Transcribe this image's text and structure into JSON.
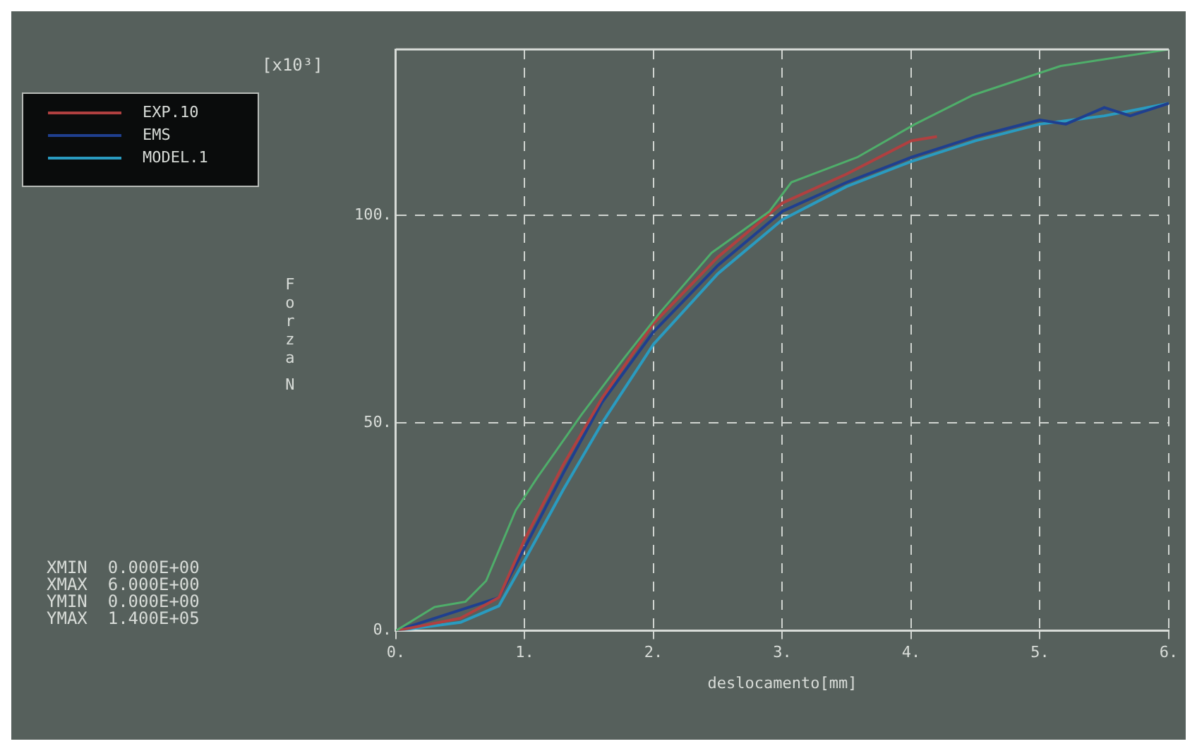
{
  "chart_data": {
    "type": "line",
    "xlabel": "deslocamento[mm]",
    "ylabel": "Forza N",
    "xlim": [
      0,
      6
    ],
    "xticks": [
      {
        "value": 0,
        "label": "0."
      },
      {
        "value": 1,
        "label": "1."
      },
      {
        "value": 2,
        "label": "2."
      },
      {
        "value": 3,
        "label": "3."
      },
      {
        "value": 4,
        "label": "4."
      },
      {
        "value": 5,
        "label": "5."
      },
      {
        "value": 6,
        "label": "6."
      }
    ],
    "ylim": [
      0,
      140
    ],
    "yticks": [
      {
        "value": 0,
        "label": "0."
      },
      {
        "value": 50,
        "label": "50."
      },
      {
        "value": 100,
        "label": "100."
      }
    ],
    "grid": true,
    "legend": "top left",
    "marker": "none",
    "line_style": "solid",
    "annotations": [
      "[x10³]",
      "XMIN  0.000E+00",
      "XMAX  6.000E+00",
      "YMIN  0.000E+00",
      "YMAX  1.400E+05"
    ],
    "series": [
      {
        "color": "#4fae6a",
        "x": [
          0,
          0.3,
          0.54,
          0.7,
          0.93,
          1.1,
          1.44,
          1.78,
          2.06,
          2.45,
          2.9,
          3.07,
          3.58,
          4.03,
          4.48,
          5.16,
          6
        ],
        "values": [
          0,
          5.7,
          7,
          12,
          29,
          37,
          52,
          66,
          77,
          91,
          101,
          108,
          114,
          122,
          129,
          136,
          140
        ]
      },
      {
        "name": "EXP.10",
        "color": "#b04040",
        "x": [
          0,
          0.5,
          0.8,
          1,
          1.3,
          1.6,
          2,
          2.5,
          3,
          3.5,
          4,
          4.2
        ],
        "values": [
          0,
          3,
          8,
          22,
          40,
          56,
          74,
          90,
          103,
          110,
          118,
          119
        ]
      },
      {
        "name": "EMS",
        "color": "#1f3f8f",
        "x": [
          0,
          0.5,
          0.8,
          1,
          1.3,
          1.6,
          2,
          2.5,
          3,
          3.5,
          4,
          4.5,
          5,
          5.2,
          5.5,
          5.7,
          6
        ],
        "values": [
          0,
          null,
          8,
          20,
          38,
          55,
          72,
          88,
          101,
          108,
          114,
          119,
          123,
          122,
          126,
          124,
          127
        ]
      },
      {
        "name": "MODEL.1",
        "color": "#2a9bc0",
        "x": [
          0,
          0.5,
          0.8,
          1,
          1.3,
          1.6,
          2,
          2.5,
          3,
          3.5,
          4,
          4.5,
          5,
          5.5,
          6
        ],
        "values": [
          0,
          2,
          6,
          17,
          34,
          50,
          69,
          86,
          99,
          107,
          113,
          118,
          122,
          124,
          127
        ]
      }
    ]
  }
}
